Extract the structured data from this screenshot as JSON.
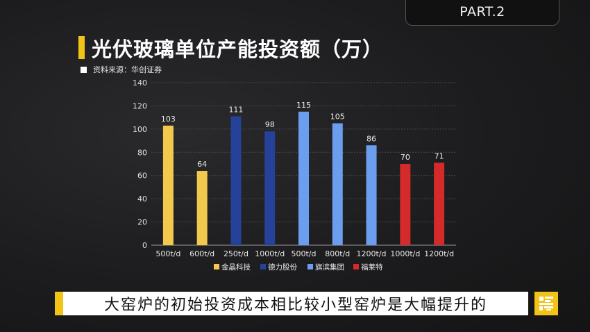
{
  "part_label": "PART.2",
  "title": "光伏玻璃单位产能投资额（万）",
  "source": "资料来源：华创证券",
  "subtitle": "大窑炉的初始投资成本相比较小型窑炉是大幅提升的",
  "colors": {
    "accent": "#f2c417"
  },
  "chart_data": {
    "type": "bar",
    "title": "光伏玻璃单位产能投资额（万）",
    "categories": [
      "500t/d",
      "600t/d",
      "250t/d",
      "1000t/d",
      "500t/d",
      "800t/d",
      "1200t/d",
      "1000t/d",
      "1200t/d"
    ],
    "values": [
      103,
      64,
      111,
      98,
      115,
      105,
      86,
      70,
      71
    ],
    "groups": [
      0,
      0,
      1,
      1,
      2,
      2,
      2,
      3,
      3
    ],
    "ylim": [
      0,
      140
    ],
    "yticks": [
      0,
      20,
      40,
      60,
      80,
      100,
      120,
      140
    ],
    "grid": true,
    "legend_position": "bottom",
    "legend": [
      {
        "name": "金晶科技",
        "color": "#f2c94c"
      },
      {
        "name": "德力股份",
        "color": "#25419a"
      },
      {
        "name": "旗滨集团",
        "color": "#6c9ef0"
      },
      {
        "name": "福莱特",
        "color": "#d42a2a"
      }
    ]
  }
}
